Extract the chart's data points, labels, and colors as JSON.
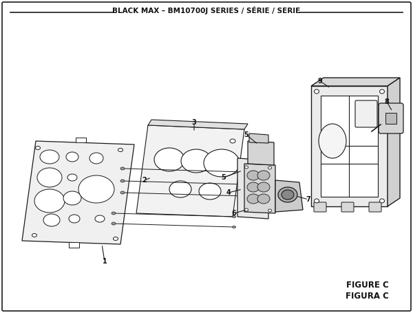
{
  "title": "BLACK MAX – BM10700J SERIES / SÉRIE / SERIE",
  "figure_label": "FIGURE C",
  "figura_label": "FIGURA C",
  "bg_color": "#f2f2f2",
  "border_color": "#1a1a1a",
  "text_color": "#111111",
  "fig_width": 6.0,
  "fig_height": 4.55,
  "dpi": 100
}
